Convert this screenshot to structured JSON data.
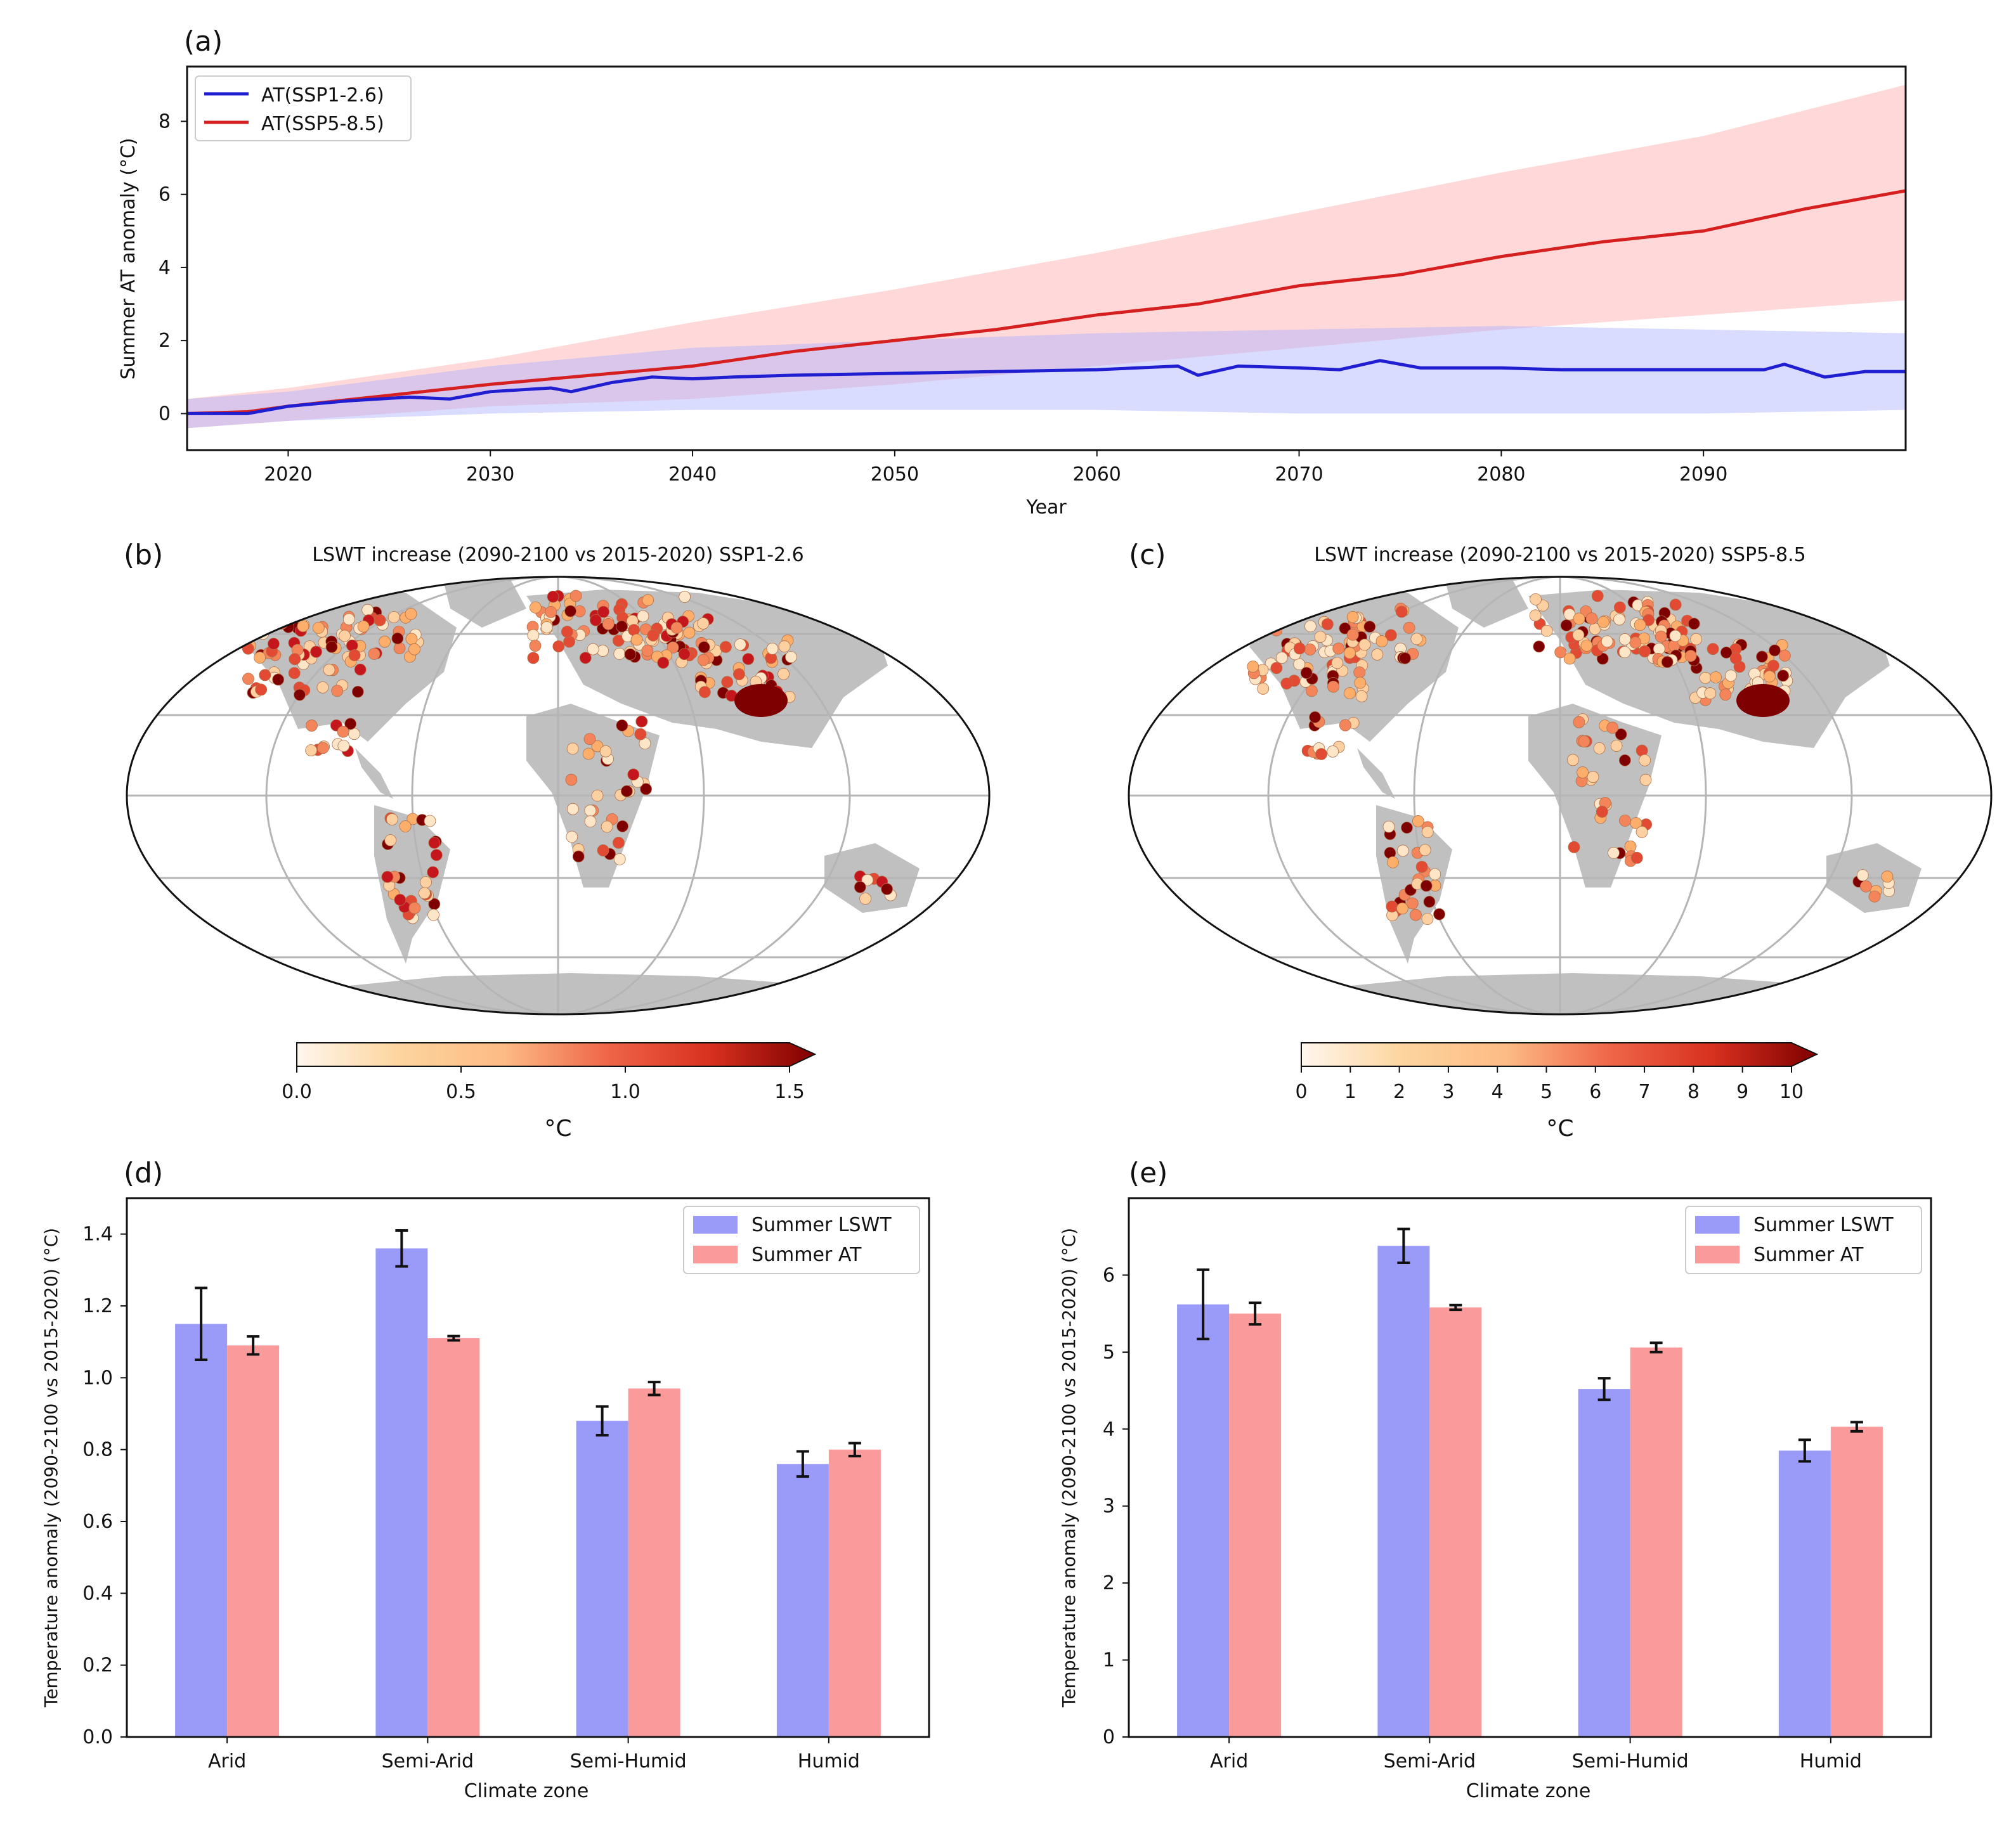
{
  "panels": {
    "a": "(a)",
    "b": "(b)",
    "c": "(c)",
    "d": "(d)",
    "e": "(e)"
  },
  "colors": {
    "ssp126": "#1f1fd1",
    "ssp585": "#d62020",
    "ssp126_band": "#aab0ff",
    "ssp585_band": "#ffaaaa",
    "lswt_bar": "#9a9af8",
    "at_bar": "#fb9a9a",
    "land": "#c0c0c0"
  },
  "chart_data": [
    {
      "id": "a",
      "type": "line",
      "title": "",
      "xlabel": "Year",
      "ylabel": "Summer AT anomaly (°C)",
      "xlim": [
        2015,
        2100
      ],
      "ylim": [
        -1,
        9.5
      ],
      "xticks": [
        2020,
        2030,
        2040,
        2050,
        2060,
        2070,
        2080,
        2090
      ],
      "yticks": [
        0,
        2,
        4,
        6,
        8
      ],
      "legend": "top-left",
      "series": [
        {
          "name": "AT(SSP1-2.6)",
          "color": "#1f1fd1",
          "points": [
            [
              2015,
              0.0
            ],
            [
              2018,
              0.0
            ],
            [
              2020,
              0.2
            ],
            [
              2023,
              0.35
            ],
            [
              2026,
              0.45
            ],
            [
              2028,
              0.4
            ],
            [
              2030,
              0.6
            ],
            [
              2033,
              0.7
            ],
            [
              2034,
              0.6
            ],
            [
              2036,
              0.85
            ],
            [
              2038,
              1.0
            ],
            [
              2040,
              0.95
            ],
            [
              2042,
              1.0
            ],
            [
              2045,
              1.05
            ],
            [
              2050,
              1.1
            ],
            [
              2055,
              1.15
            ],
            [
              2060,
              1.2
            ],
            [
              2064,
              1.3
            ],
            [
              2065,
              1.05
            ],
            [
              2067,
              1.3
            ],
            [
              2070,
              1.25
            ],
            [
              2072,
              1.2
            ],
            [
              2074,
              1.45
            ],
            [
              2076,
              1.25
            ],
            [
              2080,
              1.25
            ],
            [
              2083,
              1.2
            ],
            [
              2085,
              1.2
            ],
            [
              2090,
              1.2
            ],
            [
              2093,
              1.2
            ],
            [
              2094,
              1.35
            ],
            [
              2096,
              1.0
            ],
            [
              2098,
              1.15
            ],
            [
              2100,
              1.15
            ]
          ],
          "band_upper": [
            [
              2015,
              0.4
            ],
            [
              2020,
              0.6
            ],
            [
              2030,
              1.3
            ],
            [
              2040,
              1.8
            ],
            [
              2050,
              2.0
            ],
            [
              2060,
              2.2
            ],
            [
              2070,
              2.3
            ],
            [
              2080,
              2.4
            ],
            [
              2090,
              2.3
            ],
            [
              2100,
              2.2
            ]
          ],
          "band_lower": [
            [
              2015,
              -0.4
            ],
            [
              2020,
              -0.2
            ],
            [
              2030,
              0.0
            ],
            [
              2040,
              0.1
            ],
            [
              2050,
              0.1
            ],
            [
              2060,
              0.1
            ],
            [
              2070,
              0.0
            ],
            [
              2080,
              0.0
            ],
            [
              2090,
              0.0
            ],
            [
              2100,
              0.1
            ]
          ]
        },
        {
          "name": "AT(SSP5-8.5)",
          "color": "#d62020",
          "points": [
            [
              2015,
              0.0
            ],
            [
              2018,
              0.05
            ],
            [
              2020,
              0.2
            ],
            [
              2025,
              0.5
            ],
            [
              2030,
              0.8
            ],
            [
              2035,
              1.05
            ],
            [
              2040,
              1.3
            ],
            [
              2045,
              1.7
            ],
            [
              2050,
              2.0
            ],
            [
              2055,
              2.3
            ],
            [
              2060,
              2.7
            ],
            [
              2065,
              3.0
            ],
            [
              2070,
              3.5
            ],
            [
              2075,
              3.8
            ],
            [
              2080,
              4.3
            ],
            [
              2085,
              4.7
            ],
            [
              2090,
              5.0
            ],
            [
              2095,
              5.6
            ],
            [
              2100,
              6.1
            ]
          ],
          "band_upper": [
            [
              2015,
              0.4
            ],
            [
              2020,
              0.7
            ],
            [
              2030,
              1.5
            ],
            [
              2040,
              2.5
            ],
            [
              2050,
              3.4
            ],
            [
              2060,
              4.4
            ],
            [
              2070,
              5.5
            ],
            [
              2080,
              6.6
            ],
            [
              2090,
              7.6
            ],
            [
              2100,
              9.0
            ]
          ],
          "band_lower": [
            [
              2015,
              -0.4
            ],
            [
              2020,
              -0.2
            ],
            [
              2030,
              0.2
            ],
            [
              2040,
              0.4
            ],
            [
              2050,
              0.8
            ],
            [
              2060,
              1.3
            ],
            [
              2070,
              1.8
            ],
            [
              2080,
              2.3
            ],
            [
              2090,
              2.7
            ],
            [
              2100,
              3.1
            ]
          ]
        }
      ]
    },
    {
      "id": "b",
      "type": "map",
      "title": "LSWT increase (2090-2100 vs 2015-2020) SSP1-2.6",
      "colorbar_label": "°C",
      "colorbar_ticks": [
        "0.0",
        "0.5",
        "1.0",
        "1.5"
      ],
      "colorbar_range": [
        0,
        1.5
      ]
    },
    {
      "id": "c",
      "type": "map",
      "title": "LSWT increase (2090-2100 vs 2015-2020) SSP5-8.5",
      "colorbar_label": "°C",
      "colorbar_ticks": [
        "0",
        "1",
        "2",
        "3",
        "4",
        "5",
        "6",
        "7",
        "8",
        "9",
        "10"
      ],
      "colorbar_range": [
        0,
        10
      ]
    },
    {
      "id": "d",
      "type": "bar",
      "title": "",
      "xlabel": "Climate zone",
      "ylabel": "Temperature anomaly (2090-2100 vs 2015-2020) (°C)",
      "ylim": [
        0,
        1.5
      ],
      "yticks": [
        "0.0",
        "0.2",
        "0.4",
        "0.6",
        "0.8",
        "1.0",
        "1.2",
        "1.4"
      ],
      "categories": [
        "Arid",
        "Semi-Arid",
        "Semi-Humid",
        "Humid"
      ],
      "legend": "top-right",
      "series": [
        {
          "name": "Summer LSWT",
          "values": [
            1.15,
            1.36,
            0.88,
            0.76
          ],
          "errors": [
            0.1,
            0.05,
            0.04,
            0.035
          ]
        },
        {
          "name": "Summer AT",
          "values": [
            1.09,
            1.11,
            0.97,
            0.8
          ],
          "errors": [
            0.025,
            0.006,
            0.018,
            0.018
          ]
        }
      ]
    },
    {
      "id": "e",
      "type": "bar",
      "title": "",
      "xlabel": "Climate zone",
      "ylabel": "Temperature anomaly (2090-2100 vs 2015-2020) (°C)",
      "ylim": [
        0,
        7
      ],
      "yticks": [
        "0",
        "1",
        "2",
        "3",
        "4",
        "5",
        "6"
      ],
      "categories": [
        "Arid",
        "Semi-Arid",
        "Semi-Humid",
        "Humid"
      ],
      "legend": "top-right",
      "series": [
        {
          "name": "Summer LSWT",
          "values": [
            5.62,
            6.38,
            4.52,
            3.72
          ],
          "errors": [
            0.45,
            0.22,
            0.14,
            0.14
          ]
        },
        {
          "name": "Summer AT",
          "values": [
            5.5,
            5.58,
            5.06,
            4.03
          ],
          "errors": [
            0.14,
            0.03,
            0.06,
            0.06
          ]
        }
      ]
    }
  ]
}
